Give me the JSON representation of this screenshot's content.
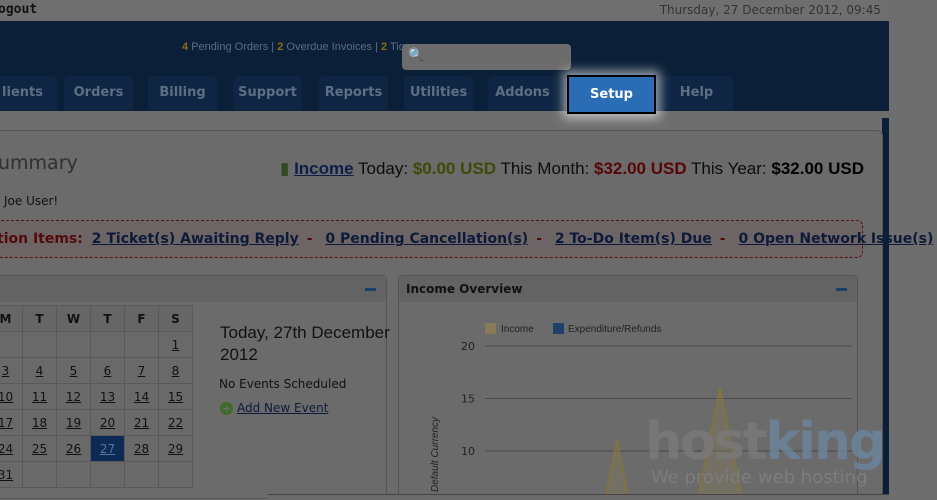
{
  "topbar": {
    "logout": "ogout",
    "date": "Thursday, 27 December 2012, 09:45"
  },
  "header": {
    "stats": [
      {
        "count": "4",
        "label": "Pending Orders"
      },
      {
        "count": "2",
        "label": "Overdue Invoices"
      },
      {
        "count": "2",
        "label": "Tic"
      }
    ],
    "search_icon": "magnifier-icon"
  },
  "tabs": [
    "lients",
    "Orders",
    "Billing",
    "Support",
    "Reports",
    "Utilities",
    "Addons",
    "Setup",
    "Help"
  ],
  "active_tab": "Setup",
  "summary": {
    "title": "ummary",
    "welcome": "Joe User!"
  },
  "income": {
    "link": "Income",
    "today_label": "Today:",
    "today": "$0.00 USD",
    "month_label": "This Month:",
    "month": "$32.00 USD",
    "year_label": "This Year:",
    "year": "$32.00 USD"
  },
  "attention": {
    "label": "tion Items:",
    "items": [
      "2 Ticket(s) Awaiting Reply",
      "0 Pending Cancellation(s)",
      "2 To-Do Item(s) Due",
      "0 Open Network Issue(s)"
    ],
    "separator": "-"
  },
  "calendar": {
    "days": [
      "M",
      "T",
      "W",
      "T",
      "F",
      "S"
    ],
    "weeks": [
      [
        "",
        "",
        "",
        "",
        "",
        "1"
      ],
      [
        "3",
        "4",
        "5",
        "6",
        "7",
        "8"
      ],
      [
        "10",
        "11",
        "12",
        "13",
        "14",
        "15"
      ],
      [
        "17",
        "18",
        "19",
        "20",
        "21",
        "22"
      ],
      [
        "24",
        "25",
        "26",
        "27",
        "28",
        "29"
      ],
      [
        "31",
        "",
        "",
        "",
        "",
        ""
      ]
    ],
    "today": "27",
    "today_heading": "Today, 27th December 2012",
    "no_events": "No Events Scheduled",
    "add_event": "Add New Event"
  },
  "income_overview": {
    "title": "Income Overview"
  },
  "chart_data": {
    "type": "area",
    "ylabel": "Default Currency",
    "yticks": [
      10,
      15,
      20
    ],
    "ylim_visible": [
      8,
      20
    ],
    "grid": true,
    "legend": "top-left",
    "series": [
      {
        "name": "Income",
        "color": "#a08a5a",
        "visible_peaks": [
          11,
          16
        ]
      },
      {
        "name": "Expenditure/Refunds",
        "color": "#1d3f6a",
        "visible_peaks": []
      }
    ]
  },
  "watermark": {
    "brand": "hostking",
    "tagline": "We provide web hosting"
  }
}
